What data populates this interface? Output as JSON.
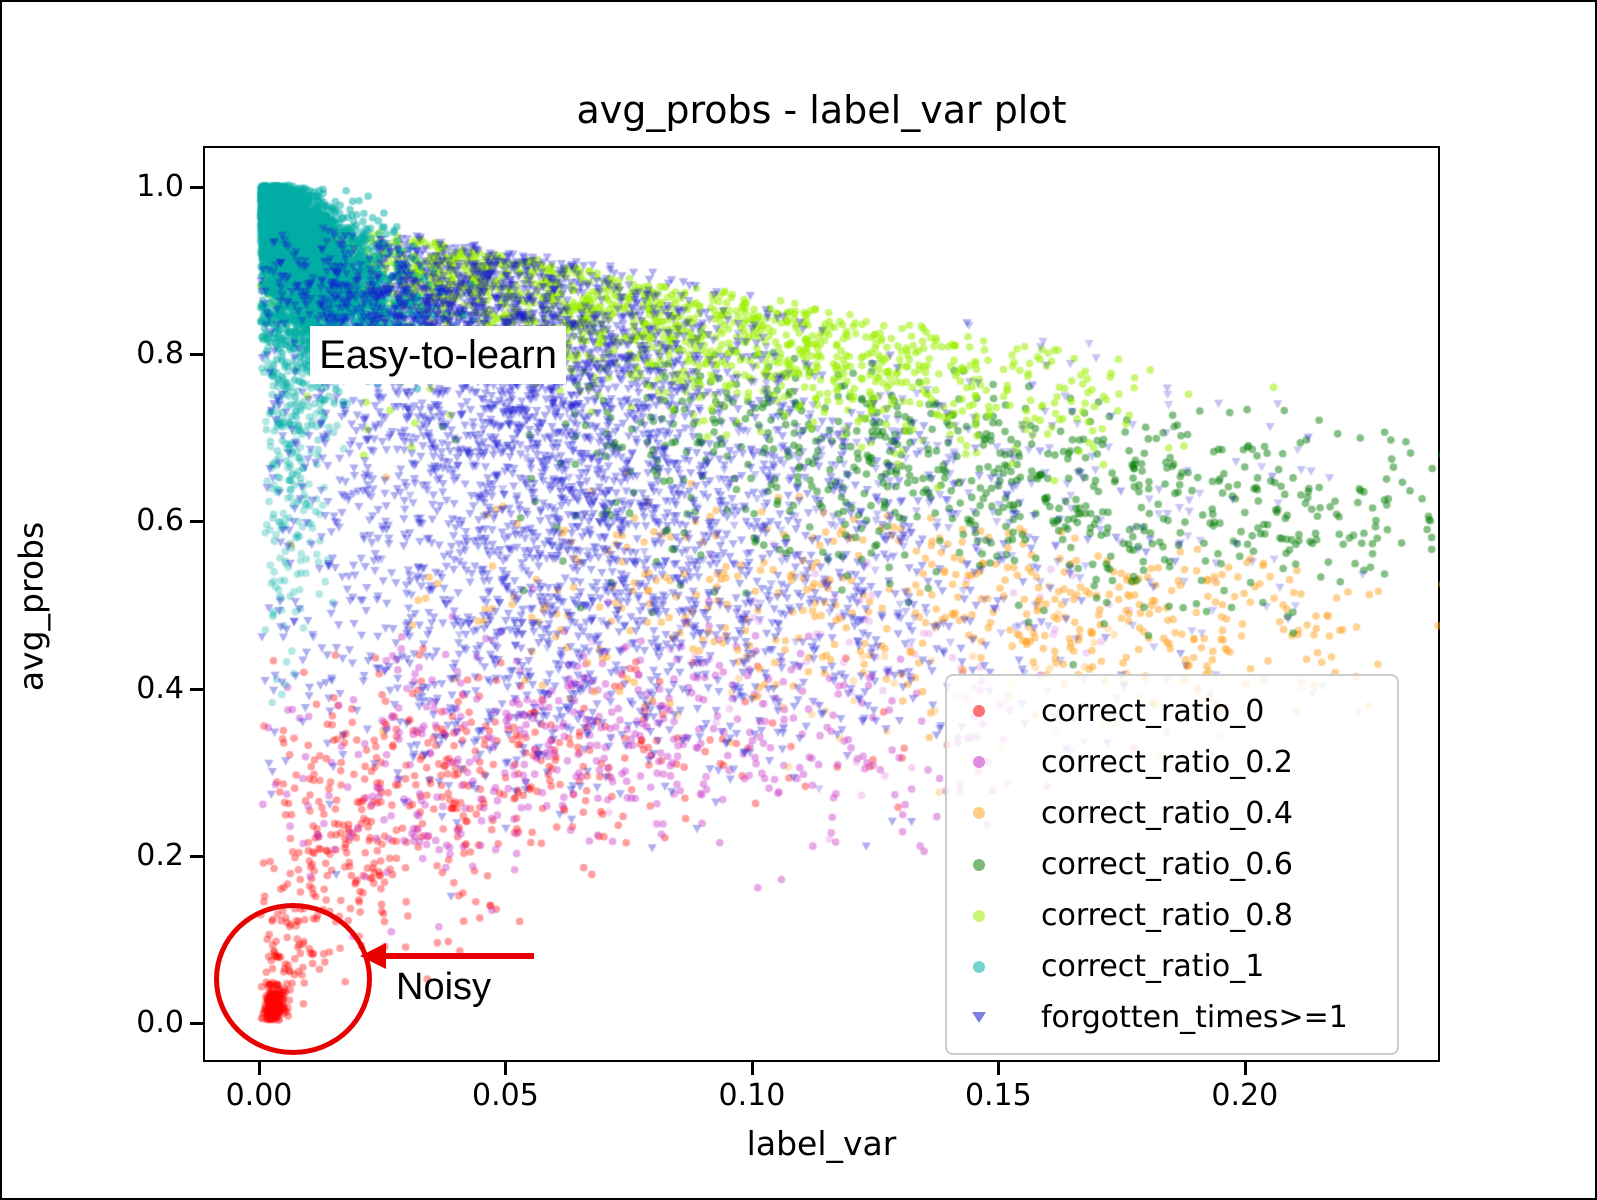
{
  "chart_data": {
    "type": "scatter",
    "title": "avg_probs - label_var plot",
    "xlabel": "label_var",
    "ylabel": "avg_probs",
    "xlim": [
      -0.01136,
      0.2396
    ],
    "ylim": [
      -0.0467,
      1.049
    ],
    "grid": false,
    "legend_position": "lower right",
    "x_ticks": {
      "values": [
        0.0,
        0.05,
        0.1,
        0.15,
        0.2
      ],
      "labels": [
        "0.00",
        "0.05",
        "0.10",
        "0.15",
        "0.20"
      ]
    },
    "y_ticks": {
      "values": [
        0.0,
        0.2,
        0.4,
        0.6,
        0.8,
        1.0
      ],
      "labels": [
        "0.0",
        "0.2",
        "0.4",
        "0.6",
        "0.8",
        "1.0"
      ]
    },
    "annotations": {
      "easy_to_learn": {
        "text": "Easy-to-learn",
        "x": 0.013,
        "y": 0.82
      },
      "noisy": {
        "text": "Noisy",
        "x": 0.03,
        "y": 0.05,
        "circle_center_x": 0.007,
        "circle_center_y": 0.05,
        "arrow_color": "#e60000"
      }
    },
    "series": [
      {
        "label": "correct_ratio_0",
        "marker": "circle",
        "color": "#FF0000",
        "alpha": 0.38,
        "size": 3.8,
        "clusters": [
          {
            "n": 150,
            "cx": 0.003,
            "cy": 0.02,
            "sx": 0.0012,
            "sy": 0.013
          },
          {
            "n": 60,
            "cx": 0.005,
            "cy": 0.07,
            "sx": 0.003,
            "sy": 0.03
          },
          {
            "n": 130,
            "cx": 0.012,
            "cy": 0.18,
            "sx": 0.008,
            "sy": 0.07
          },
          {
            "n": 220,
            "cx": 0.03,
            "cy": 0.27,
            "sx": 0.016,
            "sy": 0.08
          },
          {
            "n": 130,
            "cx": 0.055,
            "cy": 0.31,
            "sx": 0.022,
            "sy": 0.06
          },
          {
            "n": 40,
            "cx": 0.09,
            "cy": 0.33,
            "sx": 0.025,
            "sy": 0.05
          }
        ],
        "ymax_line": [
          0.45,
          0.0
        ]
      },
      {
        "label": "correct_ratio_0.2",
        "marker": "circle",
        "color": "#C631C6",
        "alpha": 0.42,
        "size": 3.8,
        "clusters": [
          {
            "n": 180,
            "cx": 0.05,
            "cy": 0.33,
            "sx": 0.022,
            "sy": 0.06
          },
          {
            "n": 160,
            "cx": 0.085,
            "cy": 0.37,
            "sx": 0.028,
            "sy": 0.06
          },
          {
            "n": 90,
            "cx": 0.115,
            "cy": 0.31,
            "sx": 0.025,
            "sy": 0.06
          },
          {
            "n": 50,
            "cx": 0.03,
            "cy": 0.22,
            "sx": 0.012,
            "sy": 0.05
          },
          {
            "n": 70,
            "cx": 0.13,
            "cy": 0.45,
            "sx": 0.03,
            "sy": 0.09,
            "a": 0.2
          }
        ],
        "ymax_line": [
          0.58,
          0.0
        ]
      },
      {
        "label": "correct_ratio_0.4",
        "marker": "circle",
        "color": "#FFA424",
        "alpha": 0.5,
        "size": 3.8,
        "clusters": [
          {
            "n": 150,
            "cx": 0.13,
            "cy": 0.5,
            "sx": 0.03,
            "sy": 0.055
          },
          {
            "n": 120,
            "cx": 0.165,
            "cy": 0.52,
            "sx": 0.028,
            "sy": 0.05
          },
          {
            "n": 90,
            "cx": 0.195,
            "cy": 0.47,
            "sx": 0.022,
            "sy": 0.05
          },
          {
            "n": 90,
            "cx": 0.1,
            "cy": 0.55,
            "sx": 0.03,
            "sy": 0.07
          },
          {
            "n": 60,
            "cx": 0.07,
            "cy": 0.48,
            "sx": 0.025,
            "sy": 0.08
          },
          {
            "n": 20,
            "cx": 0.21,
            "cy": 0.47,
            "sx": 0.015,
            "sy": 0.04
          },
          {
            "n": 40,
            "cx": 0.15,
            "cy": 0.38,
            "sx": 0.03,
            "sy": 0.05,
            "a": 0.3
          }
        ],
        "ymax_line": [
          0.72,
          -0.8
        ]
      },
      {
        "label": "correct_ratio_0.6",
        "marker": "circle",
        "color": "#0A800A",
        "alpha": 0.5,
        "size": 3.8,
        "clusters": [
          {
            "n": 260,
            "cx": 0.125,
            "cy": 0.67,
            "sx": 0.028,
            "sy": 0.055
          },
          {
            "n": 200,
            "cx": 0.16,
            "cy": 0.62,
            "sx": 0.028,
            "sy": 0.06
          },
          {
            "n": 110,
            "cx": 0.195,
            "cy": 0.63,
            "sx": 0.02,
            "sy": 0.055
          },
          {
            "n": 90,
            "cx": 0.1,
            "cy": 0.73,
            "sx": 0.02,
            "sy": 0.04
          },
          {
            "n": 50,
            "cx": 0.22,
            "cy": 0.6,
            "sx": 0.012,
            "sy": 0.05
          },
          {
            "n": 40,
            "cx": 0.08,
            "cy": 0.62,
            "sx": 0.018,
            "sy": 0.06
          },
          {
            "n": 14,
            "cx": 0.215,
            "cy": 0.58,
            "sx": 0.012,
            "sy": 0.04
          }
        ],
        "ymax_line": [
          0.9,
          -0.8
        ]
      },
      {
        "label": "correct_ratio_0.8",
        "marker": "circle",
        "color": "#9CF000",
        "alpha": 0.55,
        "size": 3.8,
        "clusters": [
          {
            "n": 500,
            "cx": 0.035,
            "cy": 0.9,
            "sx": 0.018,
            "sy": 0.03
          },
          {
            "n": 420,
            "cx": 0.065,
            "cy": 0.86,
            "sx": 0.022,
            "sy": 0.04
          },
          {
            "n": 320,
            "cx": 0.095,
            "cy": 0.82,
            "sx": 0.022,
            "sy": 0.04
          },
          {
            "n": 220,
            "cx": 0.125,
            "cy": 0.78,
            "sx": 0.022,
            "sy": 0.04
          },
          {
            "n": 120,
            "cx": 0.15,
            "cy": 0.75,
            "sx": 0.02,
            "sy": 0.04
          },
          {
            "n": 60,
            "cx": 0.04,
            "cy": 0.8,
            "sx": 0.02,
            "sy": 0.05
          }
        ],
        "ymax_line": [
          0.97,
          -1.0
        ]
      },
      {
        "label": "correct_ratio_1",
        "marker": "circle",
        "color": "#00AEA6",
        "alpha": 0.5,
        "size": 3.8,
        "clusters": [
          {
            "n": 400,
            "cx": 0.0025,
            "cy": 0.99,
            "sx": 0.0015,
            "sy": 0.008
          },
          {
            "n": 1600,
            "cx": 0.004,
            "cy": 0.965,
            "sx": 0.0035,
            "sy": 0.022
          },
          {
            "n": 1400,
            "cx": 0.008,
            "cy": 0.92,
            "sx": 0.006,
            "sy": 0.03
          },
          {
            "n": 1000,
            "cx": 0.013,
            "cy": 0.875,
            "sx": 0.008,
            "sy": 0.035
          },
          {
            "n": 500,
            "cx": 0.018,
            "cy": 0.84,
            "sx": 0.01,
            "sy": 0.03
          },
          {
            "n": 220,
            "cx": 0.007,
            "cy": 0.75,
            "sx": 0.005,
            "sy": 0.06,
            "a": 0.35
          },
          {
            "n": 120,
            "cx": 0.006,
            "cy": 0.6,
            "sx": 0.004,
            "sy": 0.08,
            "a": 0.3
          }
        ],
        "ymax_line": [
          1.002,
          0.0
        ]
      },
      {
        "label": "forgotten_times>=1",
        "marker": "triangle_down",
        "color": "#1414D2",
        "alpha": 0.34,
        "size": 4.6,
        "clusters": [
          {
            "n": 900,
            "cx": 0.035,
            "cy": 0.87,
            "sx": 0.018,
            "sy": 0.045
          },
          {
            "n": 800,
            "cx": 0.06,
            "cy": 0.8,
            "sx": 0.025,
            "sy": 0.06
          },
          {
            "n": 700,
            "cx": 0.05,
            "cy": 0.68,
            "sx": 0.025,
            "sy": 0.08
          },
          {
            "n": 600,
            "cx": 0.08,
            "cy": 0.6,
            "sx": 0.035,
            "sy": 0.09
          },
          {
            "n": 500,
            "cx": 0.06,
            "cy": 0.48,
            "sx": 0.03,
            "sy": 0.08
          },
          {
            "n": 350,
            "cx": 0.1,
            "cy": 0.45,
            "sx": 0.04,
            "sy": 0.08
          },
          {
            "n": 250,
            "cx": 0.12,
            "cy": 0.65,
            "sx": 0.04,
            "sy": 0.08,
            "a": 0.25
          },
          {
            "n": 120,
            "cx": 0.15,
            "cy": 0.55,
            "sx": 0.04,
            "sy": 0.1,
            "a": 0.22
          },
          {
            "n": 80,
            "cx": 0.04,
            "cy": 0.33,
            "sx": 0.025,
            "sy": 0.06
          }
        ],
        "ymax_line": [
          0.97,
          -0.9
        ]
      }
    ]
  }
}
